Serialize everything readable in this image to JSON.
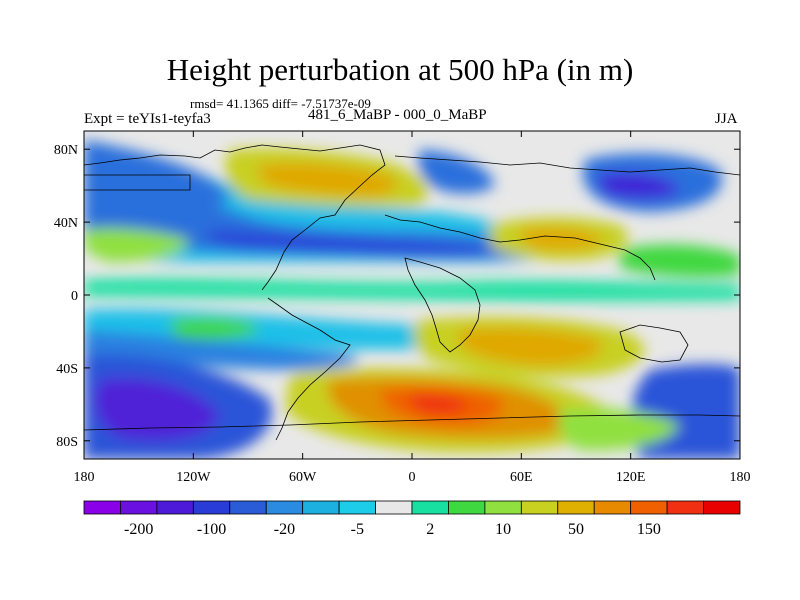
{
  "title": "Height perturbation at 500 hPa (in m)",
  "stats": "rmsd= 41.1365 diff= -7.51737e-09",
  "left_label": "Expt = teYIs1-teyfa3",
  "center_label": "481_6_MaBP - 000_0_MaBP",
  "season": "JJA",
  "y_ticks": [
    {
      "label": "80N",
      "lat": 80
    },
    {
      "label": "40N",
      "lat": 40
    },
    {
      "label": "0",
      "lat": 0
    },
    {
      "label": "40S",
      "lat": -40
    },
    {
      "label": "80S",
      "lat": -80
    }
  ],
  "x_ticks": [
    {
      "label": "180",
      "lon": -180
    },
    {
      "label": "120W",
      "lon": -120
    },
    {
      "label": "60W",
      "lon": -60
    },
    {
      "label": "0",
      "lon": 0
    },
    {
      "label": "60E",
      "lon": 60
    },
    {
      "label": "120E",
      "lon": 120
    },
    {
      "label": "180",
      "lon": 180
    }
  ],
  "colorbar": {
    "colors": [
      "#8a00e8",
      "#6a10e0",
      "#4c1ad8",
      "#2a3cd8",
      "#2a5cd8",
      "#2a8be0",
      "#1cb0e0",
      "#1ccce8",
      "#e8e8e8",
      "#18e0a0",
      "#40d840",
      "#90e040",
      "#c8d020",
      "#e0b000",
      "#e88a00",
      "#f06000",
      "#f03010",
      "#e80000"
    ],
    "labels": [
      {
        "text": "-200",
        "index": 1
      },
      {
        "text": "-100",
        "index": 3
      },
      {
        "text": "-20",
        "index": 5
      },
      {
        "text": "-5",
        "index": 7
      },
      {
        "text": "2",
        "index": 9
      },
      {
        "text": "10",
        "index": 11
      },
      {
        "text": "50",
        "index": 13
      },
      {
        "text": "150",
        "index": 15
      }
    ]
  }
}
